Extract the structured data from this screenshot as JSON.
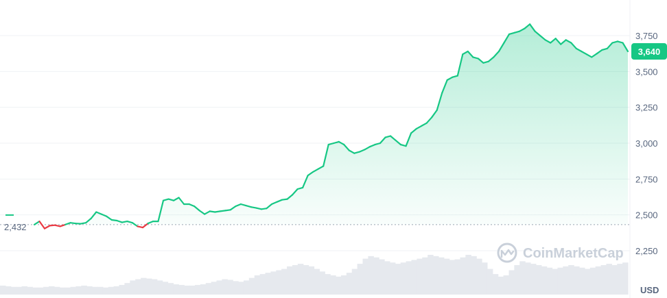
{
  "chart_data": {
    "type": "line",
    "y_unit": "USD",
    "ylim": [
      2150,
      3870
    ],
    "y_ticks": [
      2250,
      2500,
      2750,
      3000,
      3250,
      3500,
      3750
    ],
    "y_tick_labels": [
      "2,250",
      "2,500",
      "2,750",
      "3,000",
      "3,250",
      "3,500",
      "3,750"
    ],
    "reference_value": 2432,
    "reference_label": "2,432",
    "current_value": 3640,
    "current_label": "3,640",
    "grid": true,
    "series": [
      {
        "values": [
          2432,
          2455,
          2405,
          2425,
          2428,
          2420,
          2432,
          2445,
          2440,
          2438,
          2445,
          2475,
          2520,
          2505,
          2490,
          2465,
          2460,
          2448,
          2455,
          2445,
          2420,
          2412,
          2440,
          2455,
          2455,
          2600,
          2610,
          2600,
          2620,
          2575,
          2575,
          2560,
          2530,
          2505,
          2525,
          2520,
          2525,
          2530,
          2535,
          2560,
          2575,
          2565,
          2555,
          2548,
          2540,
          2545,
          2575,
          2590,
          2605,
          2610,
          2640,
          2680,
          2690,
          2775,
          2800,
          2820,
          2840,
          2990,
          3000,
          3010,
          2990,
          2950,
          2930,
          2940,
          2955,
          2975,
          2990,
          3000,
          3040,
          3050,
          3020,
          2990,
          2980,
          3070,
          3100,
          3120,
          3140,
          3180,
          3230,
          3350,
          3440,
          3460,
          3470,
          3620,
          3640,
          3600,
          3590,
          3560,
          3570,
          3600,
          3640,
          3700,
          3760,
          3770,
          3780,
          3800,
          3830,
          3780,
          3750,
          3720,
          3700,
          3730,
          3690,
          3720,
          3700,
          3660,
          3640,
          3620,
          3600,
          3625,
          3650,
          3660,
          3700,
          3710,
          3700,
          3640
        ]
      }
    ],
    "volume": [
      14,
      13,
      12,
      12,
      13,
      12,
      11,
      11,
      12,
      13,
      12,
      11,
      11,
      12,
      13,
      14,
      13,
      12,
      12,
      11,
      12,
      13,
      15,
      18,
      22,
      24,
      26,
      25,
      24,
      22,
      20,
      18,
      16,
      15,
      14,
      14,
      15,
      16,
      18,
      20,
      22,
      24,
      23,
      21,
      20,
      22,
      26,
      30,
      32,
      34,
      36,
      38,
      40,
      44,
      46,
      48,
      46,
      44,
      40,
      36,
      32,
      30,
      28,
      30,
      34,
      40,
      48,
      56,
      60,
      58,
      55,
      52,
      50,
      48,
      50,
      52,
      54,
      56,
      58,
      62,
      60,
      58,
      56,
      54,
      55,
      58,
      62,
      60,
      56,
      50,
      40,
      32,
      28,
      30,
      38,
      46,
      52,
      50,
      48,
      46,
      44,
      42,
      40,
      42,
      44,
      46,
      44,
      42,
      40,
      42,
      44,
      46,
      48,
      46,
      48,
      50
    ],
    "watermark": "CoinMarketCap",
    "colors": {
      "up": "#16c784",
      "down": "#ea3943",
      "grid": "#eff2f5",
      "axis_text": "#58667e",
      "volume": "#e6e9ee",
      "watermark": "#c4ccd6"
    }
  }
}
